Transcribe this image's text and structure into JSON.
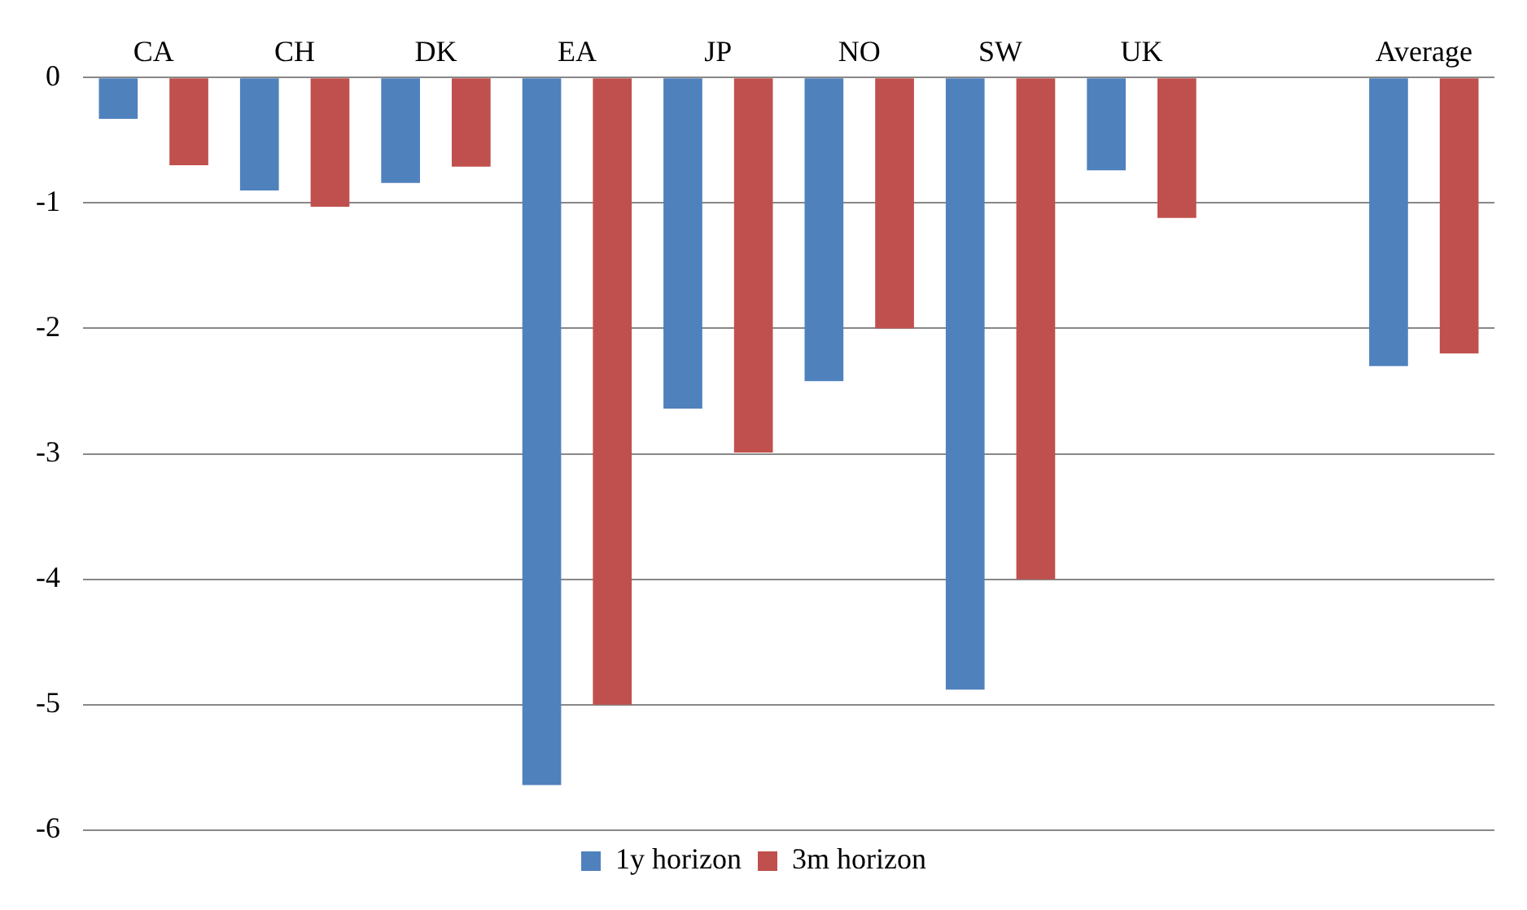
{
  "chart_data": {
    "type": "bar",
    "categories": [
      "CA",
      "CH",
      "DK",
      "EA",
      "JP",
      "NO",
      "SW",
      "UK",
      null,
      "Average"
    ],
    "series": [
      {
        "name": "1y horizon",
        "color": "#4f81bd",
        "values": [
          -0.33,
          -0.9,
          -0.84,
          -5.64,
          -2.64,
          -2.42,
          -4.88,
          -0.74,
          null,
          -2.3
        ]
      },
      {
        "name": "3m horizon",
        "color": "#c0504d",
        "values": [
          -0.7,
          -1.03,
          -0.71,
          -5.0,
          -2.99,
          -2.0,
          -4.0,
          -1.12,
          null,
          -2.2
        ]
      }
    ],
    "ylim": [
      -6,
      0
    ],
    "yticks": [
      -6,
      -5,
      -4,
      -3,
      -2,
      -1,
      0
    ],
    "grid": "y",
    "legend": "bottom"
  }
}
